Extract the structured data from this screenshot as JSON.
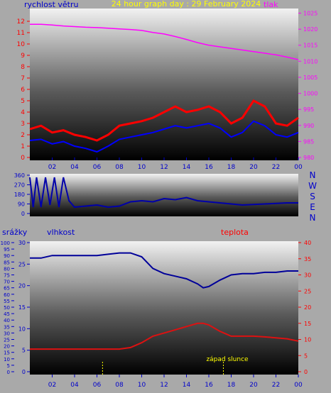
{
  "colors": {
    "wind": "#ff0000",
    "wind_gust": "#0000ff",
    "pressure": "#ff00ff",
    "direction": "#0000aa",
    "humidity": "#000099",
    "temperature": "#dd1111",
    "rain": "#000099",
    "sun_marker": "#ffff00",
    "title": "#ffff00",
    "axis_left": "#0000cc",
    "axis_right": "#ff00ff",
    "axis_temp": "#ff0000"
  },
  "chart_data": [
    {
      "type": "line",
      "panel": "wind-pressure",
      "title": "24 hour graph day : 29 February 2024",
      "ylabel": "rychlost větru",
      "y2label": "tlak",
      "x_ticks": [
        "02",
        "04",
        "06",
        "08",
        "10",
        "12",
        "14",
        "16",
        "18",
        "20",
        "22",
        "00"
      ],
      "ylim": [
        0,
        13
      ],
      "y_ticks": [
        0,
        1,
        2,
        3,
        4,
        5,
        6,
        7,
        8,
        9,
        10,
        11,
        12
      ],
      "y2lim": [
        980,
        1026
      ],
      "y2_ticks": [
        980,
        985,
        990,
        995,
        1000,
        1005,
        1010,
        1015,
        1020,
        1025
      ],
      "xlim": [
        0,
        24
      ],
      "series": [
        {
          "key": "pressure",
          "axis": "right",
          "x": [
            0,
            1,
            2,
            3,
            4,
            5,
            6,
            7,
            8,
            9,
            10,
            11,
            12,
            13,
            14,
            15,
            16,
            17,
            18,
            19,
            20,
            21,
            22,
            23,
            24
          ],
          "values": [
            1021.5,
            1021.5,
            1021.3,
            1021,
            1020.8,
            1020.6,
            1020.5,
            1020.3,
            1020.1,
            1019.9,
            1019.6,
            1019,
            1018.5,
            1017.7,
            1016.8,
            1015.8,
            1015,
            1014.5,
            1014,
            1013.5,
            1013,
            1012.5,
            1012,
            1011.3,
            1010.5
          ]
        },
        {
          "key": "wind",
          "axis": "left",
          "x": [
            0,
            1,
            2,
            3,
            4,
            5,
            6,
            7,
            8,
            9,
            10,
            11,
            12,
            13,
            14,
            15,
            16,
            17,
            18,
            19,
            20,
            21,
            22,
            23,
            24
          ],
          "values": [
            2.5,
            2.8,
            2.2,
            2.4,
            2.0,
            1.8,
            1.5,
            2.0,
            2.8,
            3.0,
            3.2,
            3.5,
            4.0,
            4.5,
            4.0,
            4.2,
            4.5,
            4.0,
            3.0,
            3.5,
            5.0,
            4.5,
            3.0,
            2.8,
            3.5
          ]
        },
        {
          "key": "wind_gust",
          "axis": "left",
          "x": [
            0,
            1,
            2,
            3,
            4,
            5,
            6,
            7,
            8,
            9,
            10,
            11,
            12,
            13,
            14,
            15,
            16,
            17,
            18,
            19,
            20,
            21,
            22,
            23,
            24
          ],
          "values": [
            1.5,
            1.6,
            1.2,
            1.4,
            1.0,
            0.8,
            0.5,
            1.0,
            1.6,
            1.8,
            2.0,
            2.2,
            2.5,
            2.8,
            2.6,
            2.8,
            3.0,
            2.6,
            1.8,
            2.2,
            3.2,
            2.8,
            2.0,
            1.8,
            2.2
          ]
        }
      ]
    },
    {
      "type": "line",
      "panel": "wind-direction",
      "x_ticks": [],
      "ylim": [
        0,
        360
      ],
      "y_ticks": [
        0,
        90,
        180,
        270,
        360
      ],
      "compass": [
        "N",
        "W",
        "S",
        "E",
        "N"
      ],
      "xlim": [
        0,
        24
      ],
      "series": [
        {
          "key": "direction",
          "x": [
            0,
            0.3,
            0.6,
            1,
            1.4,
            1.8,
            2.2,
            2.6,
            3,
            3.5,
            4,
            5,
            6,
            7,
            8,
            9,
            10,
            11,
            12,
            13,
            14,
            15,
            16,
            17,
            18,
            19,
            20,
            21,
            22,
            23,
            24
          ],
          "values": [
            340,
            60,
            340,
            60,
            340,
            80,
            340,
            60,
            340,
            120,
            60,
            70,
            80,
            60,
            70,
            110,
            120,
            110,
            140,
            130,
            150,
            120,
            110,
            100,
            90,
            80,
            85,
            90,
            95,
            100,
            100
          ]
        }
      ]
    },
    {
      "type": "line",
      "panel": "humidity-temperature",
      "ylabel": "srážky",
      "y2label": "vlhkost",
      "y3label": "teplota",
      "x_ticks": [
        "02",
        "04",
        "06",
        "08",
        "10",
        "12",
        "14",
        "16",
        "18",
        "20",
        "22",
        "00"
      ],
      "ylim": [
        0,
        100
      ],
      "y_ticks": [
        0,
        5,
        10,
        15,
        20,
        25,
        30,
        35,
        40,
        45,
        50,
        55,
        60,
        65,
        70,
        75,
        80,
        85,
        90,
        95,
        100
      ],
      "rain_lim": [
        0,
        30
      ],
      "rain_ticks": [
        0,
        5,
        10,
        15,
        20,
        25,
        30
      ],
      "temp_lim": [
        0,
        40
      ],
      "temp_ticks": [
        0,
        5,
        10,
        15,
        20,
        25,
        30,
        35,
        40
      ],
      "xlim": [
        0,
        24
      ],
      "annotation": "západ slunce",
      "sun_markers": [
        6.5,
        17.3
      ],
      "series": [
        {
          "key": "humidity",
          "x": [
            0,
            1,
            2,
            3,
            4,
            5,
            6,
            7,
            8,
            9,
            10,
            11,
            12,
            13,
            14,
            15,
            15.5,
            16,
            17,
            18,
            19,
            20,
            21,
            22,
            23,
            24
          ],
          "values": [
            88,
            88,
            90,
            90,
            90,
            90,
            90,
            91,
            92,
            92,
            89,
            80,
            76,
            74,
            72,
            68,
            65,
            66,
            71,
            75,
            76,
            76,
            77,
            77,
            78,
            78
          ]
        },
        {
          "key": "temperature",
          "x": [
            0,
            1,
            2,
            3,
            4,
            5,
            6,
            7,
            8,
            9,
            10,
            11,
            12,
            13,
            14,
            15,
            15.5,
            16,
            17,
            18,
            19,
            20,
            21,
            22,
            23,
            24
          ],
          "values": [
            7,
            7,
            7,
            7,
            7,
            7,
            7,
            7,
            7,
            7.5,
            9,
            11,
            12,
            13,
            14,
            15,
            15,
            14.5,
            12.5,
            11,
            11,
            11,
            10.8,
            10.5,
            10.2,
            9.5
          ]
        }
      ]
    }
  ]
}
